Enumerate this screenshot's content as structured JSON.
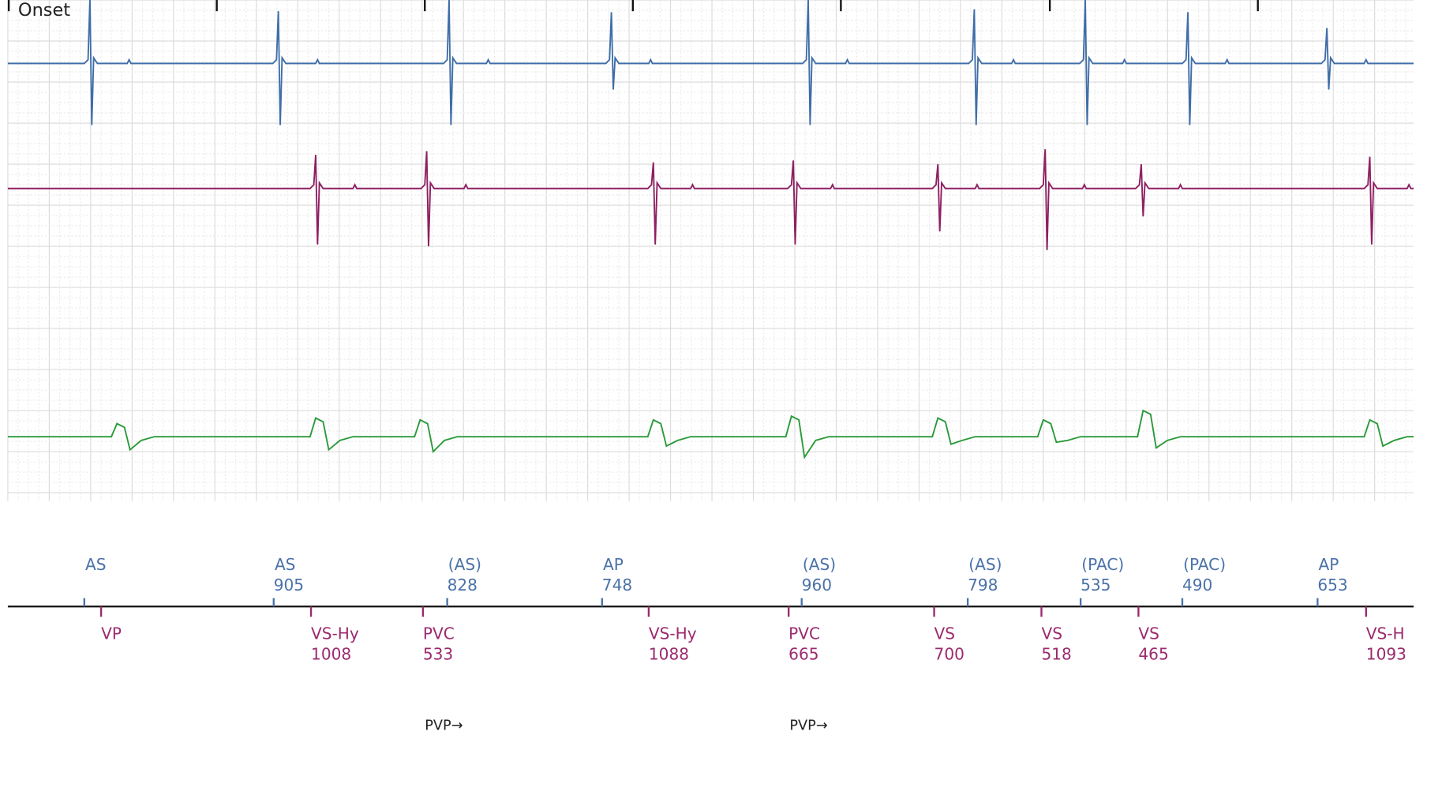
{
  "header": {
    "onset": "Onset"
  },
  "atrial_markers": [
    {
      "label": "AS"
    },
    {
      "label": "AS",
      "interval": 905
    },
    {
      "label": "(AS)",
      "interval": 828
    },
    {
      "label": "AP",
      "interval": 748
    },
    {
      "label": "(AS)",
      "interval": 960
    },
    {
      "label": "(AS)",
      "interval": 798
    },
    {
      "label": "(PAC)",
      "interval": 535
    },
    {
      "label": "(PAC)",
      "interval": 490
    },
    {
      "label": "AP",
      "interval": 653
    }
  ],
  "ventricular_markers": [
    {
      "label": "VP"
    },
    {
      "label": "VS-Hy",
      "interval": 1008
    },
    {
      "label": "PVC",
      "interval": 533
    },
    {
      "label": "VS-Hy",
      "interval": 1088
    },
    {
      "label": "PVC",
      "interval": 665
    },
    {
      "label": "VS",
      "interval": 700
    },
    {
      "label": "VS",
      "interval": 518
    },
    {
      "label": "VS",
      "interval": 465
    },
    {
      "label": "VS-H",
      "interval": 1093
    }
  ],
  "notes": [
    "PVP→",
    "PVP→"
  ]
}
